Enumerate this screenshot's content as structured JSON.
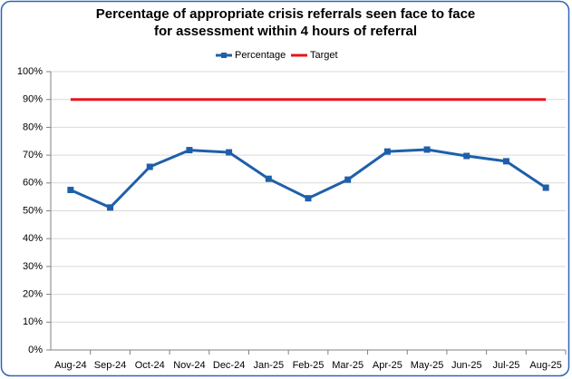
{
  "chart_data": {
    "type": "line",
    "title": [
      "Percentage of appropriate crisis referrals seen face to face",
      "for assessment within 4 hours of referral"
    ],
    "categories": [
      "Aug-24",
      "Sep-24",
      "Oct-24",
      "Nov-24",
      "Dec-24",
      "Jan-25",
      "Feb-25",
      "Mar-25",
      "Apr-25",
      "May-25",
      "Jun-25",
      "Jul-25",
      "Aug-25"
    ],
    "series": [
      {
        "name": "Percentage",
        "color": "#1f5faa",
        "values": [
          57.5,
          51.2,
          65.8,
          71.8,
          71.0,
          61.5,
          54.5,
          61.2,
          71.3,
          72.0,
          69.7,
          67.8,
          58.3
        ]
      },
      {
        "name": "Target",
        "color": "#e8141b",
        "values": [
          90,
          90,
          90,
          90,
          90,
          90,
          90,
          90,
          90,
          90,
          90,
          90,
          90
        ]
      }
    ],
    "ylim": [
      0,
      100
    ],
    "yticks": [
      {
        "value": 0,
        "label": "0%"
      },
      {
        "value": 10,
        "label": "10%"
      },
      {
        "value": 20,
        "label": "20%"
      },
      {
        "value": 30,
        "label": "30%"
      },
      {
        "value": 40,
        "label": "40%"
      },
      {
        "value": 50,
        "label": "50%"
      },
      {
        "value": 60,
        "label": "60%"
      },
      {
        "value": 70,
        "label": "70%"
      },
      {
        "value": 80,
        "label": "80%"
      },
      {
        "value": 90,
        "label": "90%"
      },
      {
        "value": 100,
        "label": "100%"
      }
    ],
    "grid": true,
    "legend": "top"
  }
}
